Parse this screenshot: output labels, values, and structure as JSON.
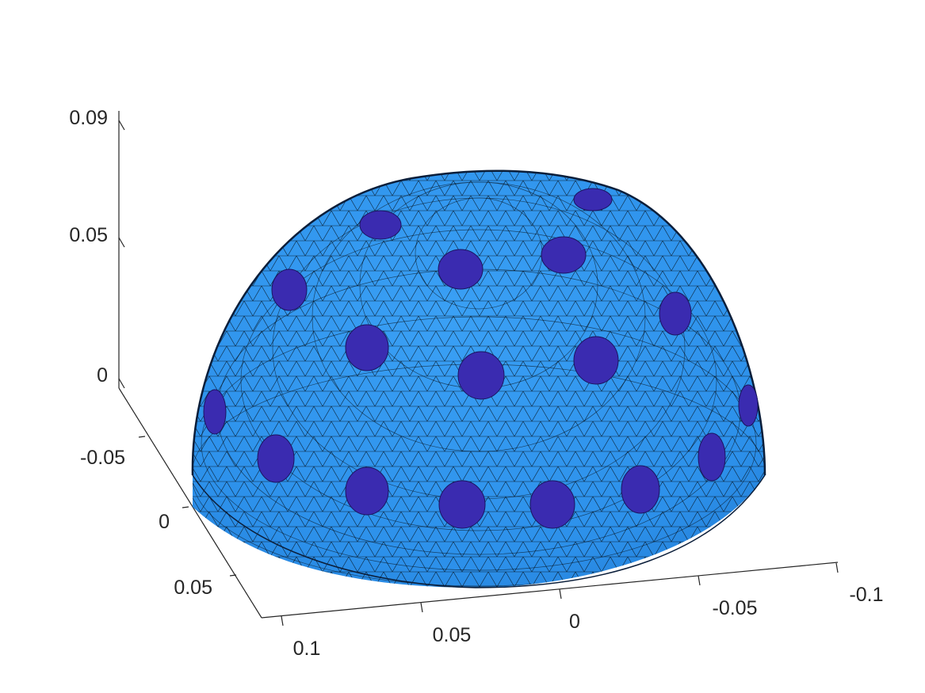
{
  "figure": {
    "type": "3d-mesh-surface",
    "surface_color": "#2f96f0",
    "mesh_line_color": "#000000",
    "electrode_color": "#3a2bb0",
    "background": "#ffffff"
  },
  "axes": {
    "x": {
      "ticks": [
        "0.1",
        "0.05",
        "0",
        "-0.05",
        "-0.1"
      ]
    },
    "y": {
      "ticks": [
        "-0.05",
        "0",
        "0.05"
      ]
    },
    "z": {
      "ticks": [
        "0",
        "0.05",
        "0.09"
      ]
    }
  }
}
